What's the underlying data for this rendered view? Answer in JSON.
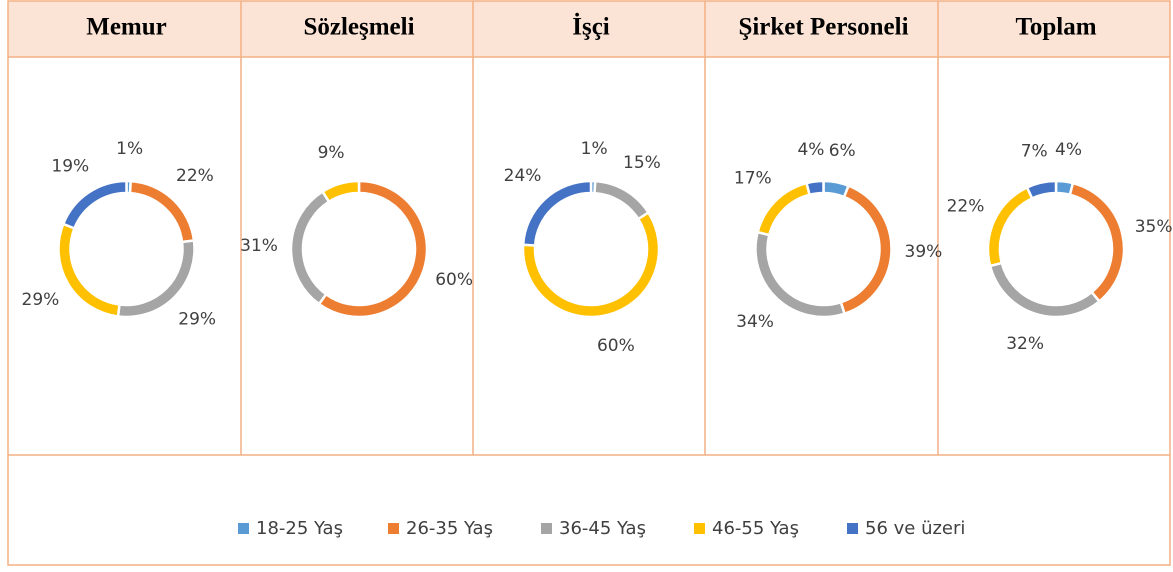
{
  "chart_data": [
    {
      "type": "donut",
      "title": "Memur",
      "values": [
        1,
        22,
        29,
        29,
        19
      ],
      "value_labels": [
        "1%",
        "22%",
        "29%",
        "29%",
        "19%"
      ]
    },
    {
      "type": "donut",
      "title": "Sözleşmeli",
      "values": [
        null,
        60,
        31,
        9,
        null
      ],
      "value_labels": [
        null,
        "60%",
        "31%",
        "9%",
        null
      ]
    },
    {
      "type": "donut",
      "title": "İşçi",
      "values": [
        1,
        null,
        15,
        60,
        24
      ],
      "value_labels": [
        "1%",
        null,
        "15%",
        "60%",
        "24%"
      ]
    },
    {
      "type": "donut",
      "title": "Şirket Personeli",
      "values": [
        6,
        39,
        34,
        17,
        4
      ],
      "value_labels": [
        "6%",
        "39%",
        "34%",
        "17%",
        "4%"
      ]
    },
    {
      "type": "donut",
      "title": "Toplam",
      "values": [
        4,
        35,
        32,
        22,
        7
      ],
      "value_labels": [
        "4%",
        "35%",
        "32%",
        "22%",
        "7%"
      ]
    }
  ],
  "legend": {
    "names": [
      "18-25 Yaş",
      "26-35 Yaş",
      "36-45 Yaş",
      "46-55 Yaş",
      "56 ve üzeri"
    ],
    "colors": [
      "#5b9bd5",
      "#ed7d31",
      "#a5a5a5",
      "#ffc000",
      "#4472c4"
    ]
  }
}
